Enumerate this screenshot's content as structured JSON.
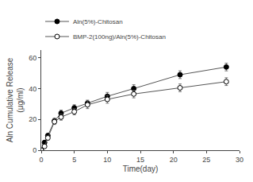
{
  "chart_data": {
    "type": "line",
    "xlabel": "Time(day)",
    "ylabel": "Aln Cumulative Release\n(μg/ml)",
    "xlim": [
      0,
      30
    ],
    "ylim": [
      0,
      65
    ],
    "xticks": [
      0,
      5,
      10,
      15,
      20,
      25,
      30
    ],
    "yticks": [
      0,
      20,
      40,
      60
    ],
    "grid": false,
    "legend": "upper left",
    "series": [
      {
        "name": "Aln(5%)-Chitosan",
        "color": "#555555",
        "marker": "circle",
        "x": [
          0,
          0.5,
          1,
          2,
          3,
          5,
          7,
          10,
          14,
          21,
          28
        ],
        "values": [
          0,
          5.0,
          9.5,
          19.0,
          24.0,
          27.5,
          30.5,
          35.0,
          40.0,
          49.0,
          54.0
        ],
        "yerr": [
          0,
          0.8,
          1.2,
          1.8,
          2.0,
          2.0,
          2.0,
          2.5,
          2.5,
          2.5,
          2.5
        ]
      },
      {
        "name": "BMP-2(100ng)/Aln(5%)-Chitosan",
        "color": "#555555",
        "marker": "circle-open",
        "x": [
          0,
          0.5,
          1,
          2,
          3,
          5,
          7,
          10,
          14,
          21,
          28
        ],
        "values": [
          0,
          2.5,
          8.0,
          18.5,
          21.5,
          25.0,
          29.5,
          33.0,
          36.5,
          40.5,
          44.5
        ],
        "yerr": [
          0,
          0.8,
          1.5,
          1.8,
          2.0,
          2.0,
          2.5,
          2.5,
          2.5,
          2.5,
          2.5
        ]
      }
    ]
  }
}
